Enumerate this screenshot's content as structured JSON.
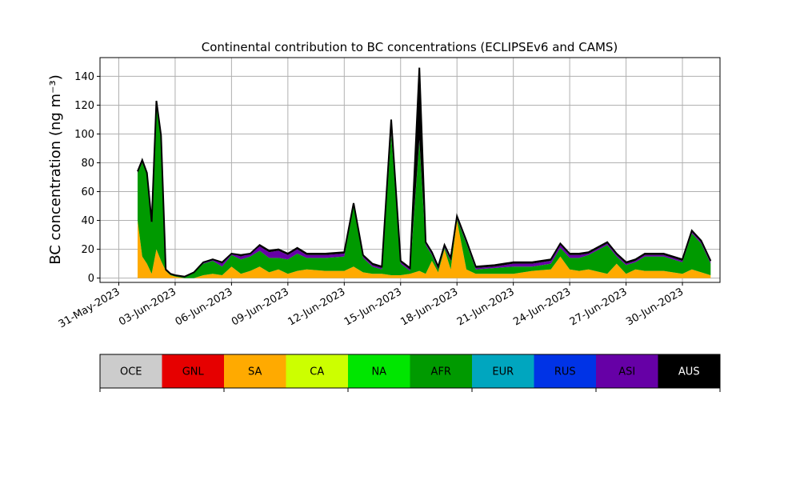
{
  "chart_data": {
    "type": "area",
    "stacked": true,
    "title": "Continental contribution to BC concentrations (ECLIPSEv6 and CAMS)",
    "ylabel": "BC concentration (ng m⁻³)",
    "ylim": [
      -3,
      153
    ],
    "yticks": [
      0,
      20,
      40,
      60,
      80,
      100,
      120,
      140
    ],
    "xlim": [
      "2023-05-30",
      "2023-07-02"
    ],
    "xtick_labels": [
      "31-May-2023",
      "03-Jun-2023",
      "06-Jun-2023",
      "09-Jun-2023",
      "12-Jun-2023",
      "15-Jun-2023",
      "18-Jun-2023",
      "21-Jun-2023",
      "24-Jun-2023",
      "27-Jun-2023",
      "30-Jun-2023"
    ],
    "grid": true,
    "legend_placement": "bottom",
    "x": [
      "2023-06-01",
      "2023-06-01",
      "2023-06-01",
      "2023-06-01",
      "2023-06-02",
      "2023-06-02",
      "2023-06-02",
      "2023-06-02",
      "2023-06-03",
      "2023-06-03",
      "2023-06-04",
      "2023-06-04",
      "2023-06-05",
      "2023-06-05",
      "2023-06-06",
      "2023-06-06",
      "2023-06-07",
      "2023-06-07",
      "2023-06-08",
      "2023-06-08",
      "2023-06-09",
      "2023-06-09",
      "2023-06-10",
      "2023-06-11",
      "2023-06-12",
      "2023-06-12",
      "2023-06-13",
      "2023-06-13",
      "2023-06-14",
      "2023-06-14",
      "2023-06-15",
      "2023-06-15",
      "2023-06-16",
      "2023-06-16",
      "2023-06-16",
      "2023-06-17",
      "2023-06-17",
      "2023-06-17",
      "2023-06-18",
      "2023-06-18",
      "2023-06-19",
      "2023-06-20",
      "2023-06-21",
      "2023-06-22",
      "2023-06-23",
      "2023-06-23",
      "2023-06-24",
      "2023-06-24",
      "2023-06-25",
      "2023-06-26",
      "2023-06-26",
      "2023-06-27",
      "2023-06-27",
      "2023-06-28",
      "2023-06-29",
      "2023-06-30",
      "2023-06-30",
      "2023-07-01",
      "2023-07-01"
    ],
    "series": [
      {
        "name": "SA",
        "values": [
          40,
          15,
          10,
          3,
          20,
          12,
          5,
          2,
          1,
          0,
          0,
          2,
          3,
          2,
          8,
          3,
          5,
          8,
          4,
          6,
          3,
          5,
          6,
          5,
          5,
          8,
          4,
          3,
          3,
          2,
          2,
          3,
          5,
          3,
          12,
          4,
          20,
          6,
          40,
          6,
          3,
          3,
          3,
          5,
          6,
          15,
          6,
          5,
          6,
          3,
          10,
          3,
          6,
          5,
          5,
          3,
          6,
          4,
          2
        ]
      },
      {
        "name": "AFR",
        "values": [
          33,
          65,
          62,
          35,
          100,
          85,
          0,
          1,
          1,
          1,
          4,
          8,
          9,
          6,
          8,
          10,
          10,
          11,
          10,
          8,
          10,
          12,
          8,
          9,
          10,
          42,
          10,
          5,
          3,
          98,
          8,
          2,
          90,
          20,
          4,
          2,
          1,
          6,
          1,
          18,
          3,
          4,
          5,
          3,
          4,
          6,
          8,
          9,
          10,
          20,
          5,
          6,
          5,
          10,
          10,
          8,
          25,
          20,
          8
        ]
      },
      {
        "name": "ASI",
        "values": [
          0,
          0,
          0,
          0,
          0,
          0,
          0,
          0,
          0,
          0,
          0,
          1,
          1,
          2,
          1,
          2,
          2,
          3,
          4,
          5,
          3,
          3,
          2,
          2,
          2,
          1,
          1,
          1,
          1,
          1,
          1,
          1,
          1,
          1,
          1,
          1,
          1,
          1,
          1,
          1,
          1,
          1,
          2,
          2,
          2,
          2,
          2,
          2,
          1,
          1,
          1,
          1,
          1,
          1,
          1,
          1,
          1,
          1,
          1
        ]
      },
      {
        "name": "AUS",
        "values": [
          1,
          2,
          1,
          1,
          3,
          2,
          1,
          0,
          0,
          0,
          0,
          0,
          0,
          1,
          0,
          1,
          0,
          1,
          1,
          1,
          1,
          1,
          1,
          1,
          1,
          1,
          1,
          1,
          1,
          9,
          1,
          1,
          50,
          1,
          1,
          1,
          1,
          1,
          1,
          1,
          1,
          1,
          1,
          1,
          1,
          1,
          1,
          1,
          1,
          1,
          1,
          1,
          1,
          1,
          1,
          1,
          1,
          1,
          1
        ]
      }
    ]
  },
  "legend": {
    "items": [
      {
        "label": "OCE",
        "color": "#cccccc",
        "text_color": "#000000"
      },
      {
        "label": "GNL",
        "color": "#e60000",
        "text_color": "#000000"
      },
      {
        "label": "SA",
        "color": "#ffaa00",
        "text_color": "#000000"
      },
      {
        "label": "CA",
        "color": "#ccff00",
        "text_color": "#000000"
      },
      {
        "label": "NA",
        "color": "#00e600",
        "text_color": "#000000"
      },
      {
        "label": "AFR",
        "color": "#009a00",
        "text_color": "#000000"
      },
      {
        "label": "EUR",
        "color": "#00a6bf",
        "text_color": "#000000"
      },
      {
        "label": "RUS",
        "color": "#0033e6",
        "text_color": "#000000"
      },
      {
        "label": "ASI",
        "color": "#6600a6",
        "text_color": "#000000"
      },
      {
        "label": "AUS",
        "color": "#000000",
        "text_color": "#ffffff"
      }
    ]
  }
}
